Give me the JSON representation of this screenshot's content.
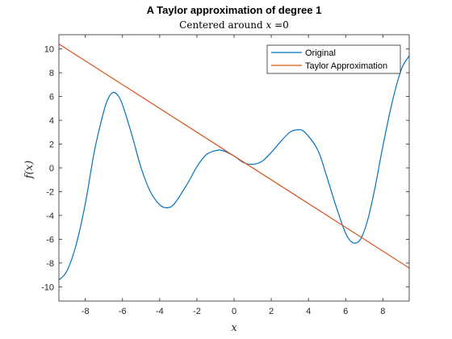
{
  "chart_data": {
    "type": "line",
    "title": "A Taylor approximation of degree 1",
    "subtitle_prefix": "Centered around ",
    "subtitle_var": "x",
    "subtitle_suffix": " =0",
    "xlabel": "x",
    "ylabel": "f(x)",
    "xlim": [
      -9.42,
      9.42
    ],
    "ylim": [
      -11.2,
      11.2
    ],
    "xticks": [
      -8,
      -6,
      -4,
      -2,
      0,
      2,
      4,
      6,
      8
    ],
    "yticks": [
      -10,
      -8,
      -6,
      -4,
      -2,
      0,
      2,
      4,
      6,
      8,
      10
    ],
    "grid": false,
    "legend_position": "top-right",
    "series": [
      {
        "name": "Original",
        "color": "#0072bd",
        "points": [
          [
            -9.42,
            -9.42
          ],
          [
            -9.0,
            -8.7
          ],
          [
            -8.5,
            -6.5
          ],
          [
            -8.0,
            -3.0
          ],
          [
            -7.5,
            1.5
          ],
          [
            -7.0,
            4.8
          ],
          [
            -6.75,
            5.9
          ],
          [
            -6.5,
            6.35
          ],
          [
            -6.25,
            6.1
          ],
          [
            -6.0,
            5.3
          ],
          [
            -5.5,
            2.8
          ],
          [
            -5.0,
            0.0
          ],
          [
            -4.5,
            -2.0
          ],
          [
            -4.0,
            -3.1
          ],
          [
            -3.6,
            -3.35
          ],
          [
            -3.2,
            -3.0
          ],
          [
            -2.5,
            -1.3
          ],
          [
            -2.0,
            0.1
          ],
          [
            -1.5,
            1.1
          ],
          [
            -1.0,
            1.45
          ],
          [
            -0.6,
            1.45
          ],
          [
            0.0,
            1.0
          ],
          [
            0.5,
            0.45
          ],
          [
            1.0,
            0.3
          ],
          [
            1.5,
            0.55
          ],
          [
            2.0,
            1.3
          ],
          [
            2.5,
            2.2
          ],
          [
            3.0,
            3.0
          ],
          [
            3.4,
            3.2
          ],
          [
            3.8,
            3.0
          ],
          [
            4.5,
            1.5
          ],
          [
            5.0,
            -0.8
          ],
          [
            5.5,
            -3.3
          ],
          [
            6.0,
            -5.5
          ],
          [
            6.4,
            -6.3
          ],
          [
            6.8,
            -6.0
          ],
          [
            7.2,
            -4.3
          ],
          [
            7.6,
            -1.5
          ],
          [
            8.0,
            1.8
          ],
          [
            8.5,
            5.5
          ],
          [
            9.0,
            8.3
          ],
          [
            9.42,
            9.42
          ]
        ]
      },
      {
        "name": "Taylor Approximation",
        "color": "#d95319",
        "points": [
          [
            -9.42,
            10.42
          ],
          [
            9.42,
            -8.42
          ]
        ]
      }
    ]
  }
}
